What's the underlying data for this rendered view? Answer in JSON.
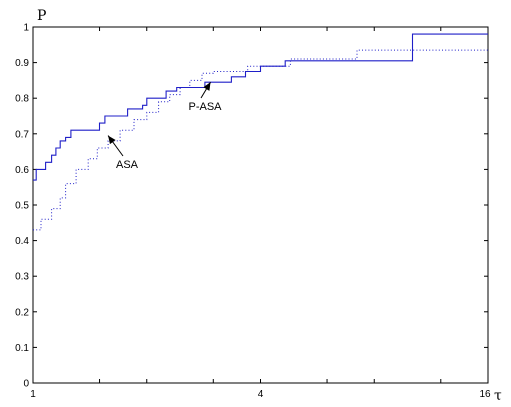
{
  "chart_data": {
    "type": "line",
    "title": "",
    "xlabel": "τ",
    "ylabel": "P",
    "xscale": "log2",
    "xlim": [
      1,
      16
    ],
    "ylim": [
      0,
      1
    ],
    "xticks": [
      1,
      2,
      4,
      8,
      16
    ],
    "xtick_labels": [
      "1",
      "",
      "4",
      "",
      "16"
    ],
    "xminor_ticks": [
      1.5,
      3,
      6,
      12
    ],
    "yticks": [
      0,
      0.1,
      0.2,
      0.3,
      0.4,
      0.5,
      0.6,
      0.7,
      0.8,
      0.9,
      1
    ],
    "ytick_labels": [
      "0",
      "0.1",
      "0.2",
      "0.3",
      "0.4",
      "0.5",
      "0.6",
      "0.7",
      "0.8",
      "0.9",
      "1"
    ],
    "grid": false,
    "legend": "none",
    "series": [
      {
        "name": "P-ASA",
        "color": "#1f1fc8",
        "dash": "solid",
        "points": [
          [
            1.0,
            0.57
          ],
          [
            1.02,
            0.6
          ],
          [
            1.08,
            0.62
          ],
          [
            1.12,
            0.64
          ],
          [
            1.15,
            0.66
          ],
          [
            1.18,
            0.68
          ],
          [
            1.22,
            0.69
          ],
          [
            1.26,
            0.71
          ],
          [
            1.45,
            0.71
          ],
          [
            1.5,
            0.73
          ],
          [
            1.55,
            0.75
          ],
          [
            1.75,
            0.75
          ],
          [
            1.78,
            0.77
          ],
          [
            1.95,
            0.78
          ],
          [
            2.0,
            0.8
          ],
          [
            2.2,
            0.8
          ],
          [
            2.25,
            0.82
          ],
          [
            2.4,
            0.83
          ],
          [
            2.8,
            0.83
          ],
          [
            2.85,
            0.845
          ],
          [
            3.3,
            0.845
          ],
          [
            3.35,
            0.86
          ],
          [
            3.6,
            0.86
          ],
          [
            3.65,
            0.875
          ],
          [
            3.95,
            0.875
          ],
          [
            4.0,
            0.89
          ],
          [
            4.6,
            0.89
          ],
          [
            4.65,
            0.905
          ],
          [
            10.0,
            0.905
          ],
          [
            10.1,
            0.98
          ],
          [
            16.0,
            0.98
          ]
        ]
      },
      {
        "name": "ASA",
        "color": "#1f1fc8",
        "dash": "dotted",
        "points": [
          [
            1.0,
            0.43
          ],
          [
            1.05,
            0.46
          ],
          [
            1.12,
            0.49
          ],
          [
            1.18,
            0.52
          ],
          [
            1.22,
            0.56
          ],
          [
            1.3,
            0.6
          ],
          [
            1.4,
            0.63
          ],
          [
            1.48,
            0.66
          ],
          [
            1.58,
            0.68
          ],
          [
            1.7,
            0.71
          ],
          [
            1.85,
            0.74
          ],
          [
            2.0,
            0.76
          ],
          [
            2.15,
            0.79
          ],
          [
            2.3,
            0.81
          ],
          [
            2.45,
            0.83
          ],
          [
            2.6,
            0.85
          ],
          [
            2.8,
            0.87
          ],
          [
            3.0,
            0.875
          ],
          [
            3.6,
            0.875
          ],
          [
            3.7,
            0.89
          ],
          [
            4.7,
            0.89
          ],
          [
            4.8,
            0.91
          ],
          [
            7.0,
            0.91
          ],
          [
            7.2,
            0.935
          ],
          [
            16.0,
            0.935
          ]
        ]
      }
    ],
    "annotations": [
      {
        "text": "P-ASA",
        "x": 2.95,
        "y": 0.845
      },
      {
        "text": "ASA",
        "x": 1.58,
        "y": 0.695
      }
    ]
  }
}
